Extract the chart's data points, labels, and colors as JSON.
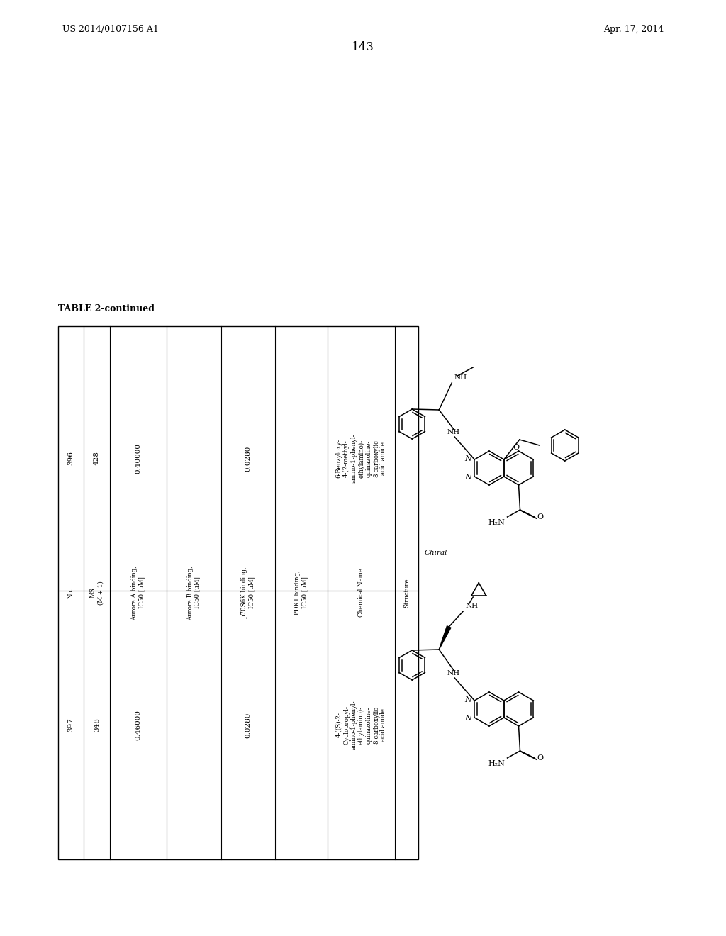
{
  "page_header_left": "US 2014/0107156 A1",
  "page_header_right": "Apr. 17, 2014",
  "page_number": "143",
  "table_title": "TABLE 2-continued",
  "col_headers": [
    "No.",
    "MS\n(M + 1)",
    "Aurora A binding,\nIC50 [μM]",
    "Aurora B binding,\nIC50 [μM]",
    "p70S6K binding,\nIC50 [μM]",
    "PDK1 binding,\nIC50 [μM]",
    "Chemical Name",
    "Structure"
  ],
  "row1": {
    "no": "396",
    "ms": "428",
    "aurora_a": "0.40000",
    "aurora_b": "",
    "p70s6k": "0.0280",
    "pdk1": "",
    "chem_name": "6-Benzyloxy-\n4-(2-methyl-\namino-1-phenyl-\nethylamino)-\nquinazoline-\n8-carboxylic\nacid amide"
  },
  "row2": {
    "no": "397",
    "ms": "348",
    "aurora_a": "0.46000",
    "aurora_b": "",
    "p70s6k": "0.0280",
    "pdk1": "",
    "chem_name": "4-((S)-2-\nCyclopropyl-\namino-1-phenyl-\nethylamino)-\nquinazoline-\n8-carboxylic\nacid amide"
  },
  "chiral_label": "Chiral",
  "background": "#ffffff"
}
